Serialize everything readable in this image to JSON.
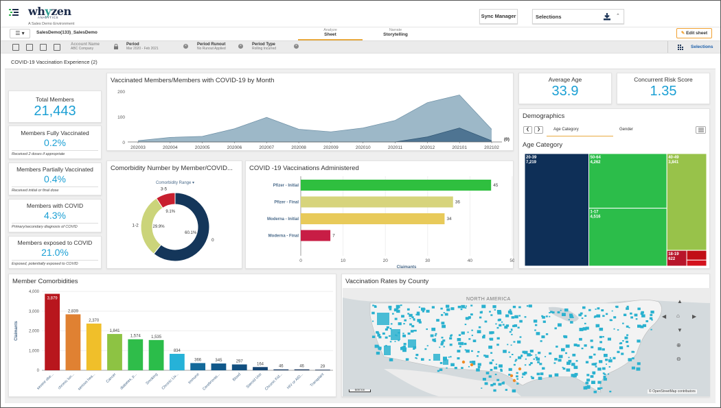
{
  "header": {
    "logo_main_a": "wh",
    "logo_main_y": "y",
    "logo_main_b": "zen",
    "logo_sub": "ANALYTICS",
    "environment": "A Sales Demo Environment",
    "sync_manager": "Sync Manager",
    "selections": "Selections"
  },
  "nav": {
    "app_name": "SalesDemo(133)_SalesDemo",
    "tabs": [
      {
        "top": "Analyze",
        "label": "Sheet"
      },
      {
        "top": "Narrate",
        "label": "Storytelling"
      }
    ],
    "edit_sheet": "Edit sheet"
  },
  "filters": {
    "items": [
      {
        "label": "Account Name",
        "value": "ABC Company"
      },
      {
        "label": "Period",
        "value": "Mar 2020 - Feb 2021"
      },
      {
        "label": "Period Runout",
        "value": "No Runout Applied"
      },
      {
        "label": "Period Type",
        "value": "Rolling Incurred"
      }
    ],
    "selections": "Selections"
  },
  "sheet_title": "COVID-19 Vaccination Experience (2)",
  "kpis": {
    "total_members": {
      "label": "Total Members",
      "value": "21,443"
    },
    "fully_vaccinated": {
      "label": "Members Fully Vaccinated",
      "value": "0.2%",
      "note": "Received 2 doses if appropriate"
    },
    "partially_vaccinated": {
      "label": "Members Partially Vaccinated",
      "value": "0.4%",
      "note": "Received initial or final dose"
    },
    "with_covid": {
      "label": "Members with COVID",
      "value": "4.3%",
      "note": "Primary/secondary diagnosis of COVID"
    },
    "exposed": {
      "label": "Members exposed to COVID",
      "value": "21.0%",
      "note": "Exposed, potentially exposed to COVID"
    },
    "average_age": {
      "label": "Average Age",
      "value": "33.9"
    },
    "risk_score": {
      "label": "Concurrent Risk Score",
      "value": "1.35"
    }
  },
  "area_chart_title": "Vaccinated Members/Members with COVID-19 by Month",
  "donut_title": "Comorbidity Number by Member/COVID...",
  "donut_dim": "Comorbidity Range",
  "hbar_title": "COVID -19 Vaccinations Administered",
  "demographics": {
    "title": "Demographics",
    "tabs": [
      "Age Category",
      "Gender"
    ],
    "subtitle": "Age Category"
  },
  "comorbidity_title": "Member Comorbidities",
  "map": {
    "title": "Vaccination Rates by County",
    "region_label": "NORTH AMERICA",
    "attribution": "© OpenStreetMap contributors",
    "scale": "500 km"
  },
  "chart_data": [
    {
      "type": "area",
      "title": "Vaccinated Members/Members with COVID-19 by Month",
      "x": [
        "202003",
        "202004",
        "202005",
        "202006",
        "202007",
        "202008",
        "202009",
        "202010",
        "202011",
        "202012",
        "202101",
        "202102"
      ],
      "series": [
        {
          "values": [
            5,
            18,
            22,
            52,
            97,
            50,
            40,
            55,
            85,
            155,
            185,
            50
          ]
        },
        {
          "values": [
            0,
            0,
            0,
            0,
            0,
            0,
            0,
            0,
            0,
            20,
            55,
            5
          ]
        }
      ],
      "ylim": [
        0,
        200
      ],
      "yticks": [
        0,
        100,
        200
      ],
      "end_label": "(0)",
      "colors": [
        "#9db8c8",
        "#4e7492"
      ]
    },
    {
      "type": "pie",
      "title": "Comorbidity Number by Member/COVID...",
      "categories": [
        "0",
        "1-2",
        "3-5"
      ],
      "values": [
        60.1,
        29.9,
        9.1
      ],
      "labels": [
        "60.1%",
        "29.9%",
        "9.1%"
      ],
      "colors": [
        "#14365a",
        "#cbd47a",
        "#c8202f"
      ]
    },
    {
      "type": "bar",
      "orientation": "horizontal",
      "title": "COVID -19 Vaccinations Administered",
      "categories": [
        "Pfizer - Initial",
        "Pfizer - Final",
        "Moderna - Initial",
        "Moderna - Final"
      ],
      "values": [
        45,
        36,
        34,
        7
      ],
      "colors": [
        "#2fbf3f",
        "#d7d47c",
        "#e8ca5a",
        "#c81d45"
      ],
      "xlabel": "Claimants",
      "xlim": [
        0,
        50
      ],
      "xticks": [
        0,
        10,
        20,
        30,
        40,
        50
      ]
    },
    {
      "type": "heatmap",
      "title": "Age Category",
      "categories": [
        "20-39",
        "50-64",
        "1-17",
        "40-49",
        "18-19"
      ],
      "values": [
        7219,
        4262,
        4516,
        3841,
        622
      ],
      "labels": [
        "7,219",
        "4,262",
        "4,516",
        "3,841",
        "622"
      ],
      "colors": [
        "#0e2f57",
        "#2cbd4a",
        "#2cbd4a",
        "#98c24a",
        "#b8152a"
      ]
    },
    {
      "type": "bar",
      "title": "Member Comorbidities",
      "categories": [
        "severe obe...",
        "chronic lun...",
        "serious hea...",
        "Cancer",
        "diabetes, p...",
        "Smoking",
        "Chronic Liv...",
        "Immune",
        "Cerebrovas...",
        "Blood",
        "Steroid Use",
        "Chronic Kid...",
        "HIV or AID...",
        "Transplant"
      ],
      "values": [
        3879,
        2839,
        2370,
        1841,
        1574,
        1535,
        834,
        366,
        345,
        297,
        164,
        46,
        46,
        29
      ],
      "labels": [
        "3,879",
        "2,839",
        "2,370",
        "1,841",
        "1,574",
        "1,535",
        "834",
        "366",
        "345",
        "297",
        "164",
        "46",
        "46",
        "29"
      ],
      "colors": [
        "#b8161d",
        "#e08132",
        "#f0bf2a",
        "#8dc343",
        "#2fbd4a",
        "#2bbd4a",
        "#26b2d8",
        "#13699a",
        "#10588a",
        "#114f7f",
        "#154573",
        "#1b3c66",
        "#19365e",
        "#163155"
      ],
      "ylabel": "Claimants",
      "ylim": [
        0,
        4000
      ],
      "yticks": [
        "0",
        "1,000",
        "2,000",
        "3,000",
        "4,000"
      ]
    }
  ]
}
